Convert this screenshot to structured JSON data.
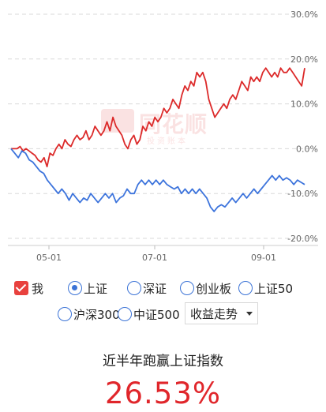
{
  "chart_data": {
    "type": "line",
    "y_ticks": [
      "30.0%",
      "20.0%",
      "10.0%",
      "0.0%",
      "-10.0%",
      "-20.0%"
    ],
    "y_tick_values": [
      30,
      20,
      10,
      0,
      -10,
      -20
    ],
    "ylim": [
      -21,
      31
    ],
    "x_ticks": [
      "05-01",
      "07-01",
      "09-01"
    ],
    "grid": true,
    "colors": {
      "me": "#dc2a2a",
      "index": "#3d74dc",
      "grid": "#d9d9d9",
      "tick": "#666666"
    },
    "series": [
      {
        "values": [
          0,
          0,
          0,
          0.5,
          -0.5,
          0,
          -0.5,
          -1,
          -1.5,
          -2.5,
          -3,
          -2,
          -4,
          -1,
          -1.5,
          0,
          1,
          0,
          2,
          1,
          0.5,
          2,
          3,
          2,
          2.5,
          4,
          2,
          3,
          5,
          4,
          3,
          4,
          6,
          4,
          7,
          5,
          4,
          3,
          1,
          0,
          2,
          3,
          1,
          2,
          5,
          4,
          6,
          5,
          7,
          6,
          7,
          9,
          8,
          9,
          11,
          10,
          9,
          12,
          14,
          13,
          15,
          14,
          17,
          16,
          17,
          15,
          11,
          9,
          7,
          8,
          9,
          10,
          9,
          11,
          12,
          11,
          13,
          15,
          14,
          13,
          16,
          15,
          16,
          15,
          17,
          18,
          17,
          16,
          17,
          16,
          18,
          17,
          17,
          18,
          17,
          16,
          15,
          14,
          18
        ]
      },
      {
        "values": [
          0,
          -1,
          -2,
          -0.5,
          -1,
          -2.5,
          -3,
          -4,
          -5,
          -5.5,
          -7,
          -8,
          -9,
          -10,
          -9,
          -10,
          -11.5,
          -10,
          -11,
          -12,
          -11,
          -11.5,
          -10,
          -11,
          -12,
          -11,
          -10,
          -11,
          -10,
          -12,
          -11,
          -10.5,
          -9,
          -10,
          -10,
          -8,
          -7,
          -8,
          -7,
          -8,
          -7,
          -8,
          -7,
          -8,
          -8.5,
          -9,
          -8.5,
          -10,
          -9,
          -10,
          -9,
          -10,
          -9,
          -10,
          -11,
          -13,
          -14,
          -13,
          -12.5,
          -13,
          -12,
          -11,
          -12,
          -11,
          -10,
          -11,
          -10,
          -9,
          -10,
          -9,
          -8,
          -7,
          -6,
          -7,
          -6,
          -7,
          -6.5,
          -7,
          -8,
          -7,
          -7.5,
          -8
        ]
      }
    ]
  },
  "options": {
    "me_label": "我",
    "shanghai_label": "上证",
    "shenzhen_label": "深证",
    "chinext_label": "创业板",
    "sse50_label": "上证50",
    "hs300_label": "沪深300",
    "csi500_label": "中证500"
  },
  "dropdown": {
    "selected": "收益走势"
  },
  "summary": {
    "title": "近半年跑赢上证指数",
    "value": "26.53%"
  }
}
